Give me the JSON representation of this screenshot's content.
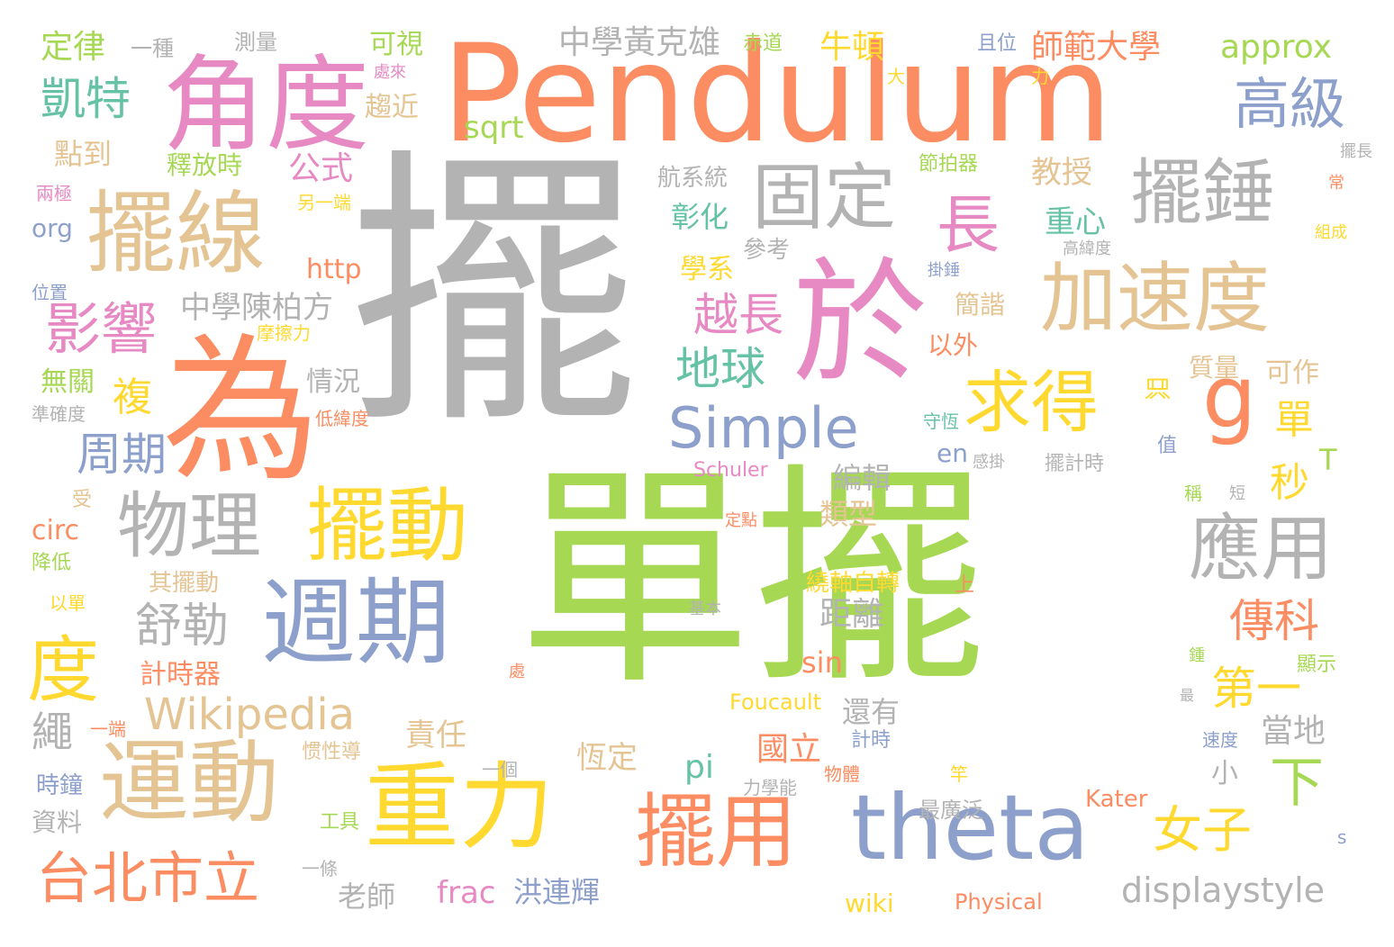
{
  "colors": {
    "green": "#a6d854",
    "gray": "#b3b3b3",
    "orange": "#fc8d62",
    "pink": "#e78ac3",
    "blue": "#8da0cb",
    "teal": "#66c2a5",
    "yellow": "#ffd92f",
    "tan": "#e5c494",
    "background": "#ffffff"
  },
  "words": [
    "單擺",
    "擺",
    "Pendulum",
    "為",
    "於",
    "角度",
    "擺線",
    "運動",
    "重力",
    "週期",
    "theta",
    "擺用",
    "擺動",
    "加速度",
    "擺錘",
    "固定",
    "物理",
    "應用",
    "求得",
    "g",
    "度",
    "長",
    "Simple",
    "台北市立",
    "影響",
    "高級",
    "凱特",
    "Wikipedia",
    "女子",
    "下",
    "地球",
    "越長",
    "第一",
    "傳科",
    "舒勒",
    "周期",
    "displaystyle",
    "approx",
    "師範大學",
    "牛頓",
    "中學黃克雄",
    "定律",
    "中學陳柏方",
    "複",
    "公式",
    "重心",
    "教授",
    "彰化",
    "學系",
    "航系統",
    "單",
    "秒",
    "當地",
    "距離",
    "責任",
    "國立",
    "恆定",
    "pi",
    "frac",
    "洪連輝",
    "老師",
    "繩",
    "小",
    "sqrt",
    "sin",
    "還有",
    "類型",
    "編輯",
    "計時器",
    "可作",
    "質量",
    "簡諧",
    "以外",
    "情況",
    "釋放時",
    "點到",
    "趨近",
    "可視",
    "測量",
    "一種",
    "赤道",
    "且位",
    "處來",
    "大",
    "力",
    "擺長",
    "常",
    "組成",
    "高緯度",
    "掛錘",
    "參考",
    "http",
    "org",
    "位置",
    "兩極",
    "另一端",
    "摩擦力",
    "無關",
    "準確度",
    "低緯度",
    "守恆",
    "只",
    "值",
    "擺計時",
    "感掛",
    "en",
    "T",
    "Schuler",
    "受",
    "circ",
    "降低",
    "以單",
    "其擺動",
    "基本",
    "定點",
    "上",
    "繞軸自轉",
    "處",
    "鍾",
    "顯示",
    "最",
    "Foucault",
    "惯性導",
    "計時",
    "速度",
    "一端",
    "一個",
    "物體",
    "竿",
    "力學能",
    "時鐘",
    "資料",
    "工具",
    "Kater",
    "最廣泛",
    "一條",
    "Physical",
    "wiki",
    "s",
    "稱",
    "短",
    "節拍器",
    "只"
  ]
}
